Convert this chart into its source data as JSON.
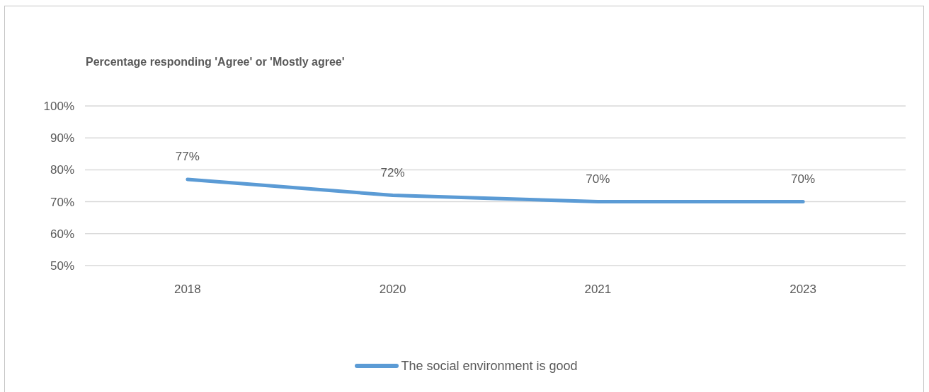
{
  "chart_data": {
    "type": "line",
    "title": "Percentage responding 'Agree' or 'Mostly agree'",
    "categories": [
      "2018",
      "2020",
      "2021",
      "2023"
    ],
    "series": [
      {
        "name": "The social environment is good",
        "color": "#5b9bd5",
        "values": [
          77,
          72,
          70,
          70
        ],
        "value_labels": [
          "77%",
          "72%",
          "70%",
          "70%"
        ]
      }
    ],
    "ylim": [
      50,
      100
    ],
    "yticks": [
      {
        "value": 50,
        "label": "50%"
      },
      {
        "value": 60,
        "label": "60%"
      },
      {
        "value": 70,
        "label": "70%"
      },
      {
        "value": 80,
        "label": "80%"
      },
      {
        "value": 90,
        "label": "90%"
      },
      {
        "value": 100,
        "label": "100%"
      }
    ],
    "grid": "y",
    "legend": "bottom",
    "marker": "none",
    "line_style": "solid"
  }
}
